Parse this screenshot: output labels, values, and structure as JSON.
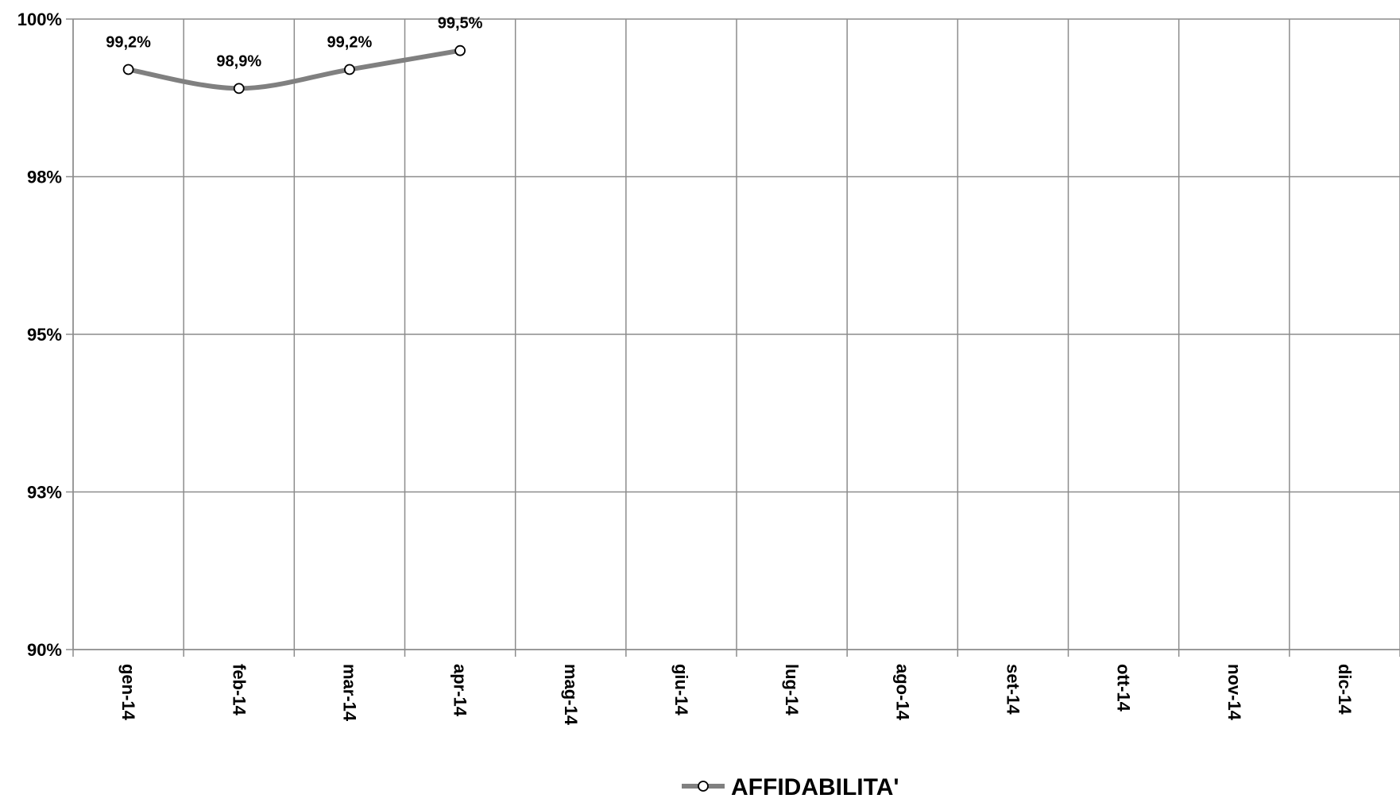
{
  "chart_data": {
    "type": "line",
    "title": "",
    "xlabel": "",
    "ylabel": "",
    "categories": [
      "gen-14",
      "feb-14",
      "mar-14",
      "apr-14",
      "mag-14",
      "giu-14",
      "lug-14",
      "ago-14",
      "set-14",
      "ott-14",
      "nov-14",
      "dic-14"
    ],
    "ylim": [
      90,
      100
    ],
    "yticks": [
      90,
      92.5,
      95,
      97.5,
      100
    ],
    "ytick_labels": [
      "90%",
      "93%",
      "95%",
      "98%",
      "100%"
    ],
    "grid": true,
    "legend_position": "bottom-center",
    "series": [
      {
        "name": "AFFIDABILITA'",
        "values": [
          99.2,
          98.9,
          99.2,
          99.5,
          null,
          null,
          null,
          null,
          null,
          null,
          null,
          null
        ],
        "data_labels": [
          "99,2%",
          "98,9%",
          "99,2%",
          "99,5%"
        ],
        "color": "#808080",
        "marker": "open-circle",
        "smooth": true
      }
    ]
  }
}
